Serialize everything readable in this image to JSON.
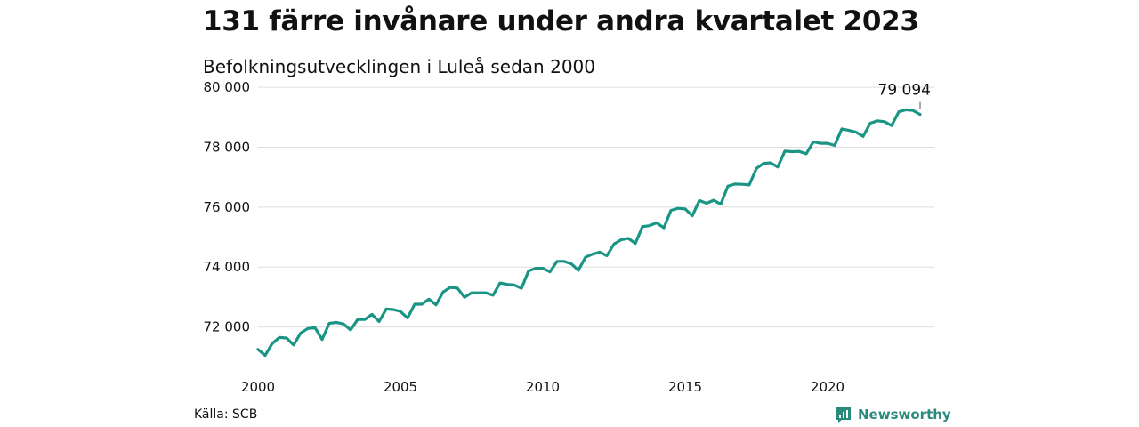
{
  "title": "131 färre invånare under andra kvartalet 2023",
  "subtitle": "Befolkningsutvecklingen i Luleå sedan 2000",
  "source": "Källa: SCB",
  "brand": "Newsworthy",
  "colors": {
    "line": "#1a9585",
    "brand": "#2a8a7c",
    "grid": "#dddddd"
  },
  "chart_data": {
    "type": "line",
    "title": "",
    "xlabel": "",
    "ylabel": "",
    "x_ticks": [
      2000,
      2005,
      2010,
      2015,
      2020
    ],
    "y_ticks": [
      72000,
      74000,
      76000,
      78000,
      80000
    ],
    "y_tick_labels": [
      "72 000",
      "74 000",
      "76 000",
      "78 000",
      "80 000"
    ],
    "xlim": [
      2000,
      2023.75
    ],
    "ylim": [
      70800,
      80300
    ],
    "grid": true,
    "end_label": "79 094",
    "series": [
      {
        "x_start": 2000.0,
        "x_step": 0.25,
        "values": [
          71250,
          71050,
          71450,
          71650,
          71630,
          71400,
          71800,
          71950,
          71980,
          71580,
          72120,
          72150,
          72100,
          71900,
          72250,
          72250,
          72420,
          72180,
          72600,
          72580,
          72520,
          72300,
          72760,
          72760,
          72930,
          72740,
          73170,
          73320,
          73300,
          72990,
          73140,
          73140,
          73140,
          73060,
          73470,
          73420,
          73400,
          73290,
          73870,
          73960,
          73960,
          73840,
          74190,
          74190,
          74110,
          73890,
          74330,
          74430,
          74500,
          74380,
          74770,
          74910,
          74960,
          74790,
          75350,
          75380,
          75480,
          75310,
          75890,
          75960,
          75940,
          75710,
          76220,
          76130,
          76230,
          76100,
          76700,
          76770,
          76760,
          76740,
          77290,
          77460,
          77480,
          77340,
          77870,
          77850,
          77860,
          77780,
          78180,
          78130,
          78130,
          78060,
          78610,
          78560,
          78500,
          78360,
          78800,
          78880,
          78850,
          78720,
          79180,
          79250,
          79225,
          79094
        ]
      }
    ]
  }
}
